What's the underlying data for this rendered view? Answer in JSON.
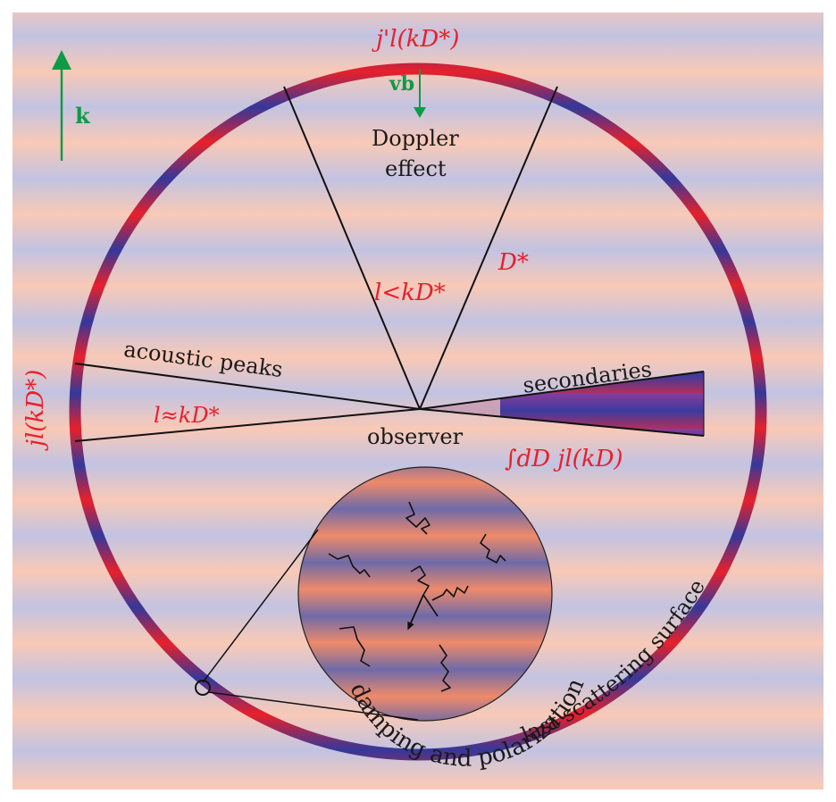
{
  "labels": {
    "top": "j'l(kD*)",
    "velocity": "vb",
    "wavevector": "k",
    "doppler_line1": "Doppler",
    "doppler_line2": "effect",
    "distance": "D*",
    "small_scale": "l<kD*",
    "acoustic": "acoustic peaks",
    "acoustic_limit": "l≈kD*",
    "left_bessel": "jl(kD*)",
    "secondaries": "secondaries",
    "observer": "observer",
    "integral": "∫dD jl(kD)",
    "damping": "damping and polarization",
    "surface": "last scattering surface"
  },
  "colors": {
    "band_blue": "#c2c3e2",
    "band_peach": "#f9c9b6",
    "ring_red": "#e8202a",
    "ring_blue": "#3a3a9a",
    "label_red": "#e8202a",
    "arrow_green": "#0f9a46"
  }
}
